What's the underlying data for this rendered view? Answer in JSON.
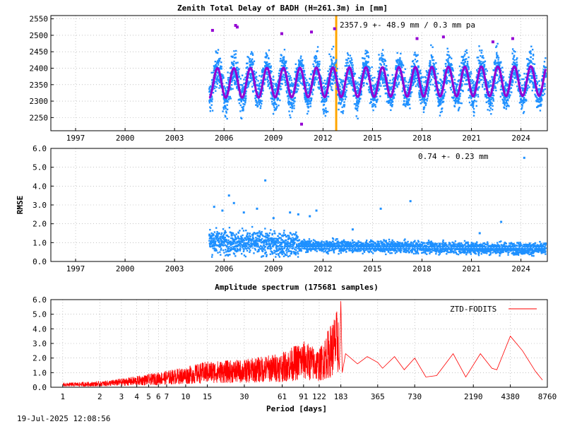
{
  "timestamp": "19-Jul-2025 12:08:56",
  "colors": {
    "ztd": "#1e90ff",
    "model": "#9400d3",
    "outlier": "#9400d3",
    "marker": "#ffa500",
    "rmse": "#1e90ff",
    "spectrum": "#ff0000"
  },
  "chart_data": [
    {
      "type": "scatter",
      "title": "Zenith Total Delay of BADH (H=261.3m) in [mm]",
      "annotation": "2357.9 +-  48.9 mm /  0.3 mm pa",
      "xlim": [
        1995.5,
        2025.6
      ],
      "ylim": [
        2210,
        2560
      ],
      "x_ticks": [
        1997,
        2000,
        2003,
        2006,
        2009,
        2012,
        2015,
        2018,
        2021,
        2024
      ],
      "y_ticks": [
        2250,
        2300,
        2350,
        2400,
        2450,
        2500,
        2550
      ],
      "data_start": 2005.1,
      "data_end": 2025.5,
      "mean": 2357.9,
      "std": 48.9,
      "trend_mm_per_year": 0.3,
      "annual_amplitude": 45,
      "marker_year": 2012.8,
      "series": [
        {
          "values": [
            [
              2005.5,
              2300
            ],
            [
              2006.0,
              2420
            ],
            [
              2006.5,
              2330
            ],
            [
              2007.0,
              2410
            ],
            [
              2007.5,
              2300
            ],
            [
              2008.0,
              2420
            ],
            [
              2008.5,
              2310
            ],
            [
              2009.0,
              2400
            ],
            [
              2009.5,
              2300
            ],
            [
              2010.0,
              2410
            ],
            [
              2010.5,
              2320
            ],
            [
              2011.0,
              2420
            ],
            [
              2011.5,
              2300
            ],
            [
              2012.0,
              2410
            ],
            [
              2012.5,
              2310
            ],
            [
              2013.0,
              2420
            ],
            [
              2013.5,
              2300
            ],
            [
              2014.0,
              2410
            ],
            [
              2014.5,
              2320
            ],
            [
              2015.0,
              2400
            ],
            [
              2015.5,
              2310
            ],
            [
              2016.0,
              2420
            ],
            [
              2016.5,
              2300
            ],
            [
              2017.0,
              2410
            ],
            [
              2017.5,
              2310
            ],
            [
              2018.0,
              2420
            ],
            [
              2018.5,
              2300
            ],
            [
              2019.0,
              2410
            ],
            [
              2019.5,
              2320
            ],
            [
              2020.0,
              2400
            ],
            [
              2020.5,
              2300
            ],
            [
              2021.0,
              2410
            ],
            [
              2021.5,
              2310
            ],
            [
              2022.0,
              2420
            ],
            [
              2022.5,
              2300
            ],
            [
              2023.0,
              2410
            ],
            [
              2023.5,
              2320
            ],
            [
              2024.0,
              2400
            ],
            [
              2024.5,
              2310
            ],
            [
              2025.0,
              2410
            ]
          ]
        }
      ],
      "outliers": [
        [
          2005.3,
          2515
        ],
        [
          2006.7,
          2530
        ],
        [
          2006.8,
          2525
        ],
        [
          2009.5,
          2505
        ],
        [
          2010.7,
          2230
        ],
        [
          2011.3,
          2510
        ],
        [
          2012.7,
          2520
        ],
        [
          2017.7,
          2490
        ],
        [
          2019.3,
          2495
        ],
        [
          2022.3,
          2480
        ],
        [
          2023.5,
          2490
        ]
      ]
    },
    {
      "type": "scatter",
      "ylabel": "RMSE",
      "annotation": "0.74 +-  0.23 mm",
      "xlim": [
        1995.5,
        2025.6
      ],
      "ylim": [
        0,
        6
      ],
      "x_ticks": [
        1997,
        2000,
        2003,
        2006,
        2009,
        2012,
        2015,
        2018,
        2021,
        2024
      ],
      "y_ticks": [
        "0.0",
        "1.0",
        "2.0",
        "3.0",
        "4.0",
        "5.0",
        "6.0"
      ],
      "mean": 0.74,
      "std": 0.23,
      "outliers": [
        [
          2005.4,
          2.9
        ],
        [
          2005.9,
          2.7
        ],
        [
          2006.3,
          3.5
        ],
        [
          2006.6,
          3.1
        ],
        [
          2007.2,
          2.6
        ],
        [
          2008.0,
          2.8
        ],
        [
          2008.5,
          4.3
        ],
        [
          2009.0,
          2.3
        ],
        [
          2010.0,
          2.6
        ],
        [
          2010.5,
          2.5
        ],
        [
          2011.2,
          2.4
        ],
        [
          2011.6,
          2.7
        ],
        [
          2013.8,
          1.7
        ],
        [
          2015.5,
          2.8
        ],
        [
          2017.3,
          3.2
        ],
        [
          2021.5,
          1.5
        ],
        [
          2022.8,
          2.1
        ],
        [
          2024.2,
          5.5
        ]
      ]
    },
    {
      "type": "line",
      "title": "Amplitude spectrum (175681 samples)",
      "xlabel": "Period [days]",
      "legend": "ZTD-FODITS",
      "legend_position": "top-right",
      "ylim": [
        0,
        6
      ],
      "x_scale": "log",
      "xlim": [
        0.8,
        8760
      ],
      "y_ticks": [
        "0.0",
        "1.0",
        "2.0",
        "3.0",
        "4.0",
        "5.0",
        "6.0"
      ],
      "x_ticks": [
        "1",
        "2",
        "3",
        "4",
        "5",
        "6",
        "7",
        "10",
        "15",
        "30",
        "61",
        "91",
        "122",
        "183",
        "365",
        "730",
        "2190",
        "4380",
        "8760"
      ],
      "x_tick_values": [
        1,
        2,
        3,
        4,
        5,
        6,
        7,
        10,
        15,
        30,
        61,
        91,
        122,
        183,
        365,
        730,
        2190,
        4380,
        8760
      ],
      "peaks": [
        [
          1,
          0.3
        ],
        [
          2,
          0.4
        ],
        [
          3,
          0.6
        ],
        [
          5,
          0.9
        ],
        [
          10,
          1.4
        ],
        [
          15,
          1.8
        ],
        [
          30,
          1.9
        ],
        [
          61,
          2.4
        ],
        [
          91,
          3.2
        ],
        [
          122,
          2.6
        ],
        [
          183,
          5.9
        ],
        [
          200,
          2.3
        ],
        [
          250,
          1.6
        ],
        [
          300,
          2.1
        ],
        [
          365,
          1.7
        ],
        [
          400,
          1.3
        ],
        [
          500,
          2.1
        ],
        [
          600,
          1.2
        ],
        [
          730,
          2.0
        ],
        [
          900,
          0.7
        ],
        [
          1100,
          0.8
        ],
        [
          1500,
          2.3
        ],
        [
          1900,
          0.7
        ],
        [
          2500,
          2.3
        ],
        [
          3100,
          1.3
        ],
        [
          3400,
          1.2
        ],
        [
          4380,
          3.5
        ],
        [
          5500,
          2.5
        ],
        [
          7000,
          1.1
        ],
        [
          8000,
          0.5
        ]
      ]
    }
  ]
}
